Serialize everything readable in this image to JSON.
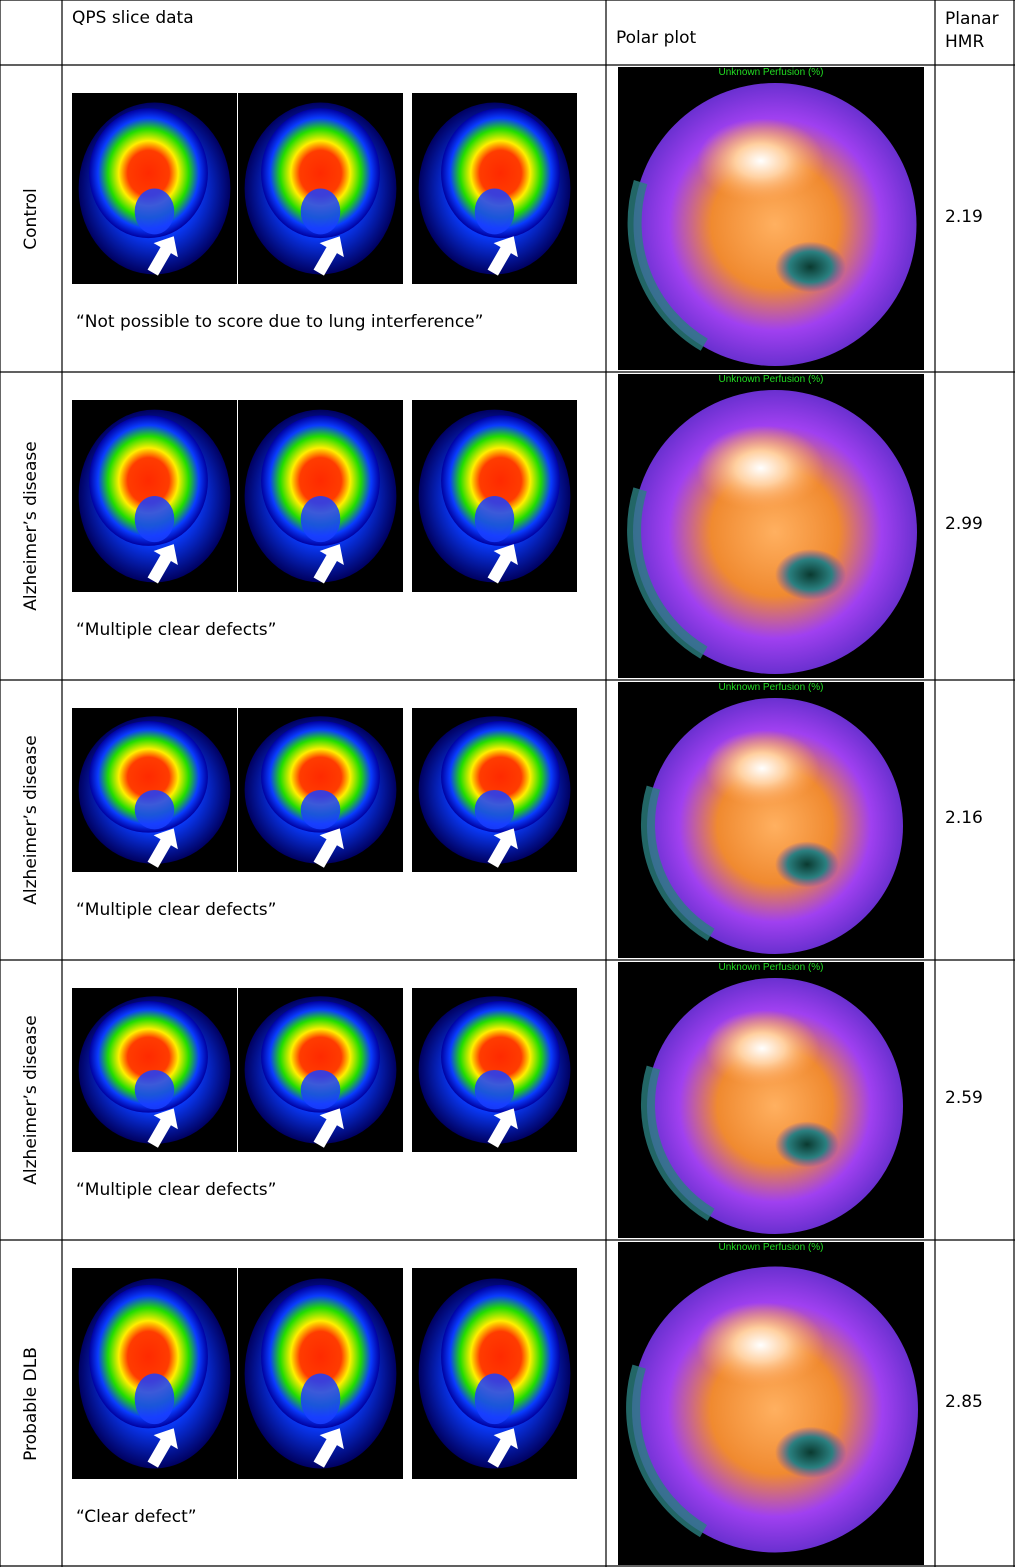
{
  "header": [
    "QPS slice data",
    "Polar plot",
    "Planar HMR"
  ],
  "rows": [
    {
      "group": "Control",
      "comment": "“Not possible to score due to lung interference”",
      "polar_title": "Unknown Perfusion (%)",
      "hmr": 2.19
    },
    {
      "group": "Alzheimer’s disease",
      "comment": "“Multiple clear defects”",
      "polar_title": "Unknown Perfusion (%)",
      "hmr": 2.99
    },
    {
      "group": "Alzheimer’s disease",
      "comment": "“Multiple clear defects”",
      "polar_title": "Unknown Perfusion (%)",
      "hmr": 2.16
    },
    {
      "group": "Alzheimer’s disease",
      "comment": "“Multiple clear defects”",
      "polar_title": "Unknown Perfusion (%)",
      "hmr": 2.59
    },
    {
      "group": "Probable DLB",
      "comment": "“Clear defect”",
      "polar_title": "Unknown Perfusion (%)",
      "hmr": 2.85
    }
  ]
}
